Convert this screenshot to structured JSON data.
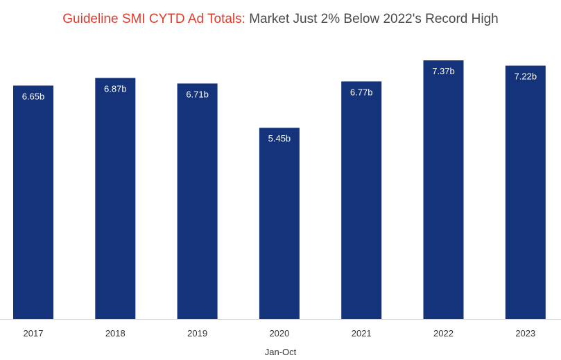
{
  "chart_data": {
    "type": "bar",
    "title_highlight": "Guideline SMI CYTD Ad Totals:",
    "title_rest": " Market Just 2% Below 2022's Record High",
    "xlabel": "Jan-Oct",
    "ylabel": "",
    "categories": [
      "2017",
      "2018",
      "2019",
      "2020",
      "2021",
      "2022",
      "2023"
    ],
    "values": [
      6.65,
      6.87,
      6.71,
      5.45,
      6.77,
      7.37,
      7.22
    ],
    "data_labels": [
      "6.65b",
      "6.87b",
      "6.71b",
      "5.45b",
      "6.77b",
      "7.37b",
      "7.22b"
    ],
    "ylim": [
      0,
      7.37
    ],
    "grid": false,
    "colors": {
      "bar": "#15337a",
      "title_highlight": "#e23b2c",
      "title_rest": "#4a4a4a",
      "axis_line": "#d9d9d9"
    }
  }
}
